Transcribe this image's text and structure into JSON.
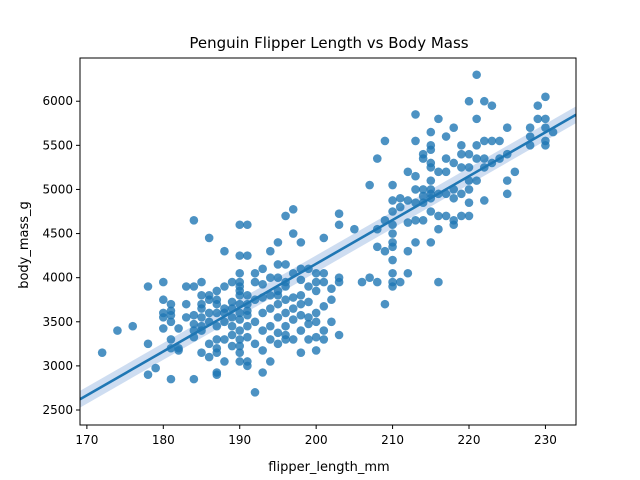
{
  "chart_data": {
    "type": "scatter",
    "title": "Penguin Flipper Length vs Body Mass",
    "xlabel": "flipper_length_mm",
    "ylabel": "body_mass_g",
    "xlim": [
      169.1,
      234.0
    ],
    "ylim": [
      2330,
      6490
    ],
    "xticks": [
      170,
      180,
      190,
      200,
      210,
      220,
      230
    ],
    "yticks": [
      2500,
      3000,
      3500,
      4000,
      4500,
      5000,
      5500,
      6000
    ],
    "grid": false,
    "legend": "none",
    "point_color": "#1f77b4",
    "regression": {
      "type": "linear",
      "intercept": -5780.8,
      "slope": 49.69,
      "ci_half_width": 95,
      "line_color": "#1f77b4",
      "band_color": "#aec7e8"
    },
    "points": [
      [
        172,
        3150
      ],
      [
        174,
        3400
      ],
      [
        176,
        3450
      ],
      [
        178,
        3250
      ],
      [
        178,
        3900
      ],
      [
        178,
        2900
      ],
      [
        179,
        2975
      ],
      [
        180,
        3600
      ],
      [
        180,
        3950
      ],
      [
        180,
        3750
      ],
      [
        180,
        3550
      ],
      [
        180,
        3425
      ],
      [
        181,
        3200
      ],
      [
        181,
        3300
      ],
      [
        181,
        3625
      ],
      [
        181,
        3500
      ],
      [
        181,
        3700
      ],
      [
        181,
        3575
      ],
      [
        181,
        2850
      ],
      [
        182,
        3425
      ],
      [
        182,
        3200
      ],
      [
        182,
        3175
      ],
      [
        183,
        3550
      ],
      [
        183,
        3900
      ],
      [
        183,
        3700
      ],
      [
        184,
        3900
      ],
      [
        184,
        3325
      ],
      [
        184,
        4650
      ],
      [
        184,
        2850
      ],
      [
        184,
        3400
      ],
      [
        184,
        3475
      ],
      [
        184,
        3575
      ],
      [
        185,
        3150
      ],
      [
        185,
        3700
      ],
      [
        185,
        3950
      ],
      [
        185,
        3550
      ],
      [
        185,
        3400
      ],
      [
        185,
        3650
      ],
      [
        185,
        3800
      ],
      [
        185,
        3450
      ],
      [
        186,
        3250
      ],
      [
        186,
        3750
      ],
      [
        186,
        3600
      ],
      [
        186,
        4450
      ],
      [
        186,
        3100
      ],
      [
        186,
        3500
      ],
      [
        186,
        3800
      ],
      [
        187,
        3150
      ],
      [
        187,
        3300
      ],
      [
        187,
        3600
      ],
      [
        187,
        3700
      ],
      [
        187,
        2900
      ],
      [
        187,
        3200
      ],
      [
        187,
        3450
      ],
      [
        187,
        3750
      ],
      [
        187,
        3850
      ],
      [
        187,
        2925
      ],
      [
        188,
        3050
      ],
      [
        188,
        3300
      ],
      [
        188,
        3500
      ],
      [
        188,
        3600
      ],
      [
        188,
        3650
      ],
      [
        188,
        4300
      ],
      [
        188,
        3900
      ],
      [
        189,
        3225
      ],
      [
        189,
        3550
      ],
      [
        189,
        3725
      ],
      [
        189,
        3950
      ],
      [
        189,
        3450
      ],
      [
        189,
        3350
      ],
      [
        189,
        3650
      ],
      [
        190,
        3050
      ],
      [
        190,
        3225
      ],
      [
        190,
        3400
      ],
      [
        190,
        3600
      ],
      [
        190,
        3700
      ],
      [
        190,
        3850
      ],
      [
        190,
        4050
      ],
      [
        190,
        4600
      ],
      [
        190,
        4250
      ],
      [
        190,
        3525
      ],
      [
        190,
        3800
      ],
      [
        190,
        3300
      ],
      [
        190,
        3950
      ],
      [
        190,
        3150
      ],
      [
        190,
        3900
      ],
      [
        191,
        3000
      ],
      [
        191,
        3325
      ],
      [
        191,
        3450
      ],
      [
        191,
        3625
      ],
      [
        191,
        3800
      ],
      [
        191,
        4250
      ],
      [
        191,
        4600
      ],
      [
        191,
        3050
      ],
      [
        191,
        3575
      ],
      [
        191,
        3700
      ],
      [
        192,
        2700
      ],
      [
        192,
        3500
      ],
      [
        192,
        3750
      ],
      [
        192,
        4050
      ],
      [
        192,
        3950
      ],
      [
        192,
        3250
      ],
      [
        193,
        2925
      ],
      [
        193,
        3175
      ],
      [
        193,
        3400
      ],
      [
        193,
        3600
      ],
      [
        193,
        3775
      ],
      [
        193,
        4100
      ],
      [
        193,
        3925
      ],
      [
        194,
        3050
      ],
      [
        194,
        3300
      ],
      [
        194,
        3450
      ],
      [
        194,
        3650
      ],
      [
        194,
        3800
      ],
      [
        194,
        4000
      ],
      [
        194,
        4300
      ],
      [
        195,
        3250
      ],
      [
        195,
        3375
      ],
      [
        195,
        3550
      ],
      [
        195,
        3850
      ],
      [
        195,
        4000
      ],
      [
        195,
        4150
      ],
      [
        195,
        4400
      ],
      [
        195,
        3800
      ],
      [
        195,
        3700
      ],
      [
        196,
        3300
      ],
      [
        196,
        3450
      ],
      [
        196,
        3600
      ],
      [
        196,
        3750
      ],
      [
        196,
        3950
      ],
      [
        196,
        4150
      ],
      [
        196,
        4700
      ],
      [
        196,
        3350
      ],
      [
        196,
        3900
      ],
      [
        197,
        3300
      ],
      [
        197,
        3525
      ],
      [
        197,
        3775
      ],
      [
        197,
        4050
      ],
      [
        197,
        4775
      ],
      [
        197,
        4500
      ],
      [
        197,
        3650
      ],
      [
        198,
        3150
      ],
      [
        198,
        3400
      ],
      [
        198,
        3575
      ],
      [
        198,
        3800
      ],
      [
        198,
        3975
      ],
      [
        198,
        4400
      ],
      [
        198,
        3700
      ],
      [
        198,
        4100
      ],
      [
        199,
        3300
      ],
      [
        199,
        3550
      ],
      [
        199,
        3725
      ],
      [
        199,
        3900
      ],
      [
        199,
        4100
      ],
      [
        199,
        3475
      ],
      [
        200,
        3500
      ],
      [
        200,
        3600
      ],
      [
        200,
        3850
      ],
      [
        200,
        4050
      ],
      [
        200,
        3175
      ],
      [
        200,
        3950
      ],
      [
        200,
        3325
      ],
      [
        201,
        3400
      ],
      [
        201,
        3675
      ],
      [
        201,
        3950
      ],
      [
        201,
        4050
      ],
      [
        201,
        3300
      ],
      [
        201,
        4450
      ],
      [
        202,
        3875
      ],
      [
        202,
        3750
      ],
      [
        202,
        3500
      ],
      [
        203,
        3350
      ],
      [
        203,
        3950
      ],
      [
        203,
        4000
      ],
      [
        203,
        4600
      ],
      [
        203,
        4725
      ],
      [
        205,
        4550
      ],
      [
        206,
        3950
      ],
      [
        207,
        4000
      ],
      [
        207,
        5050
      ],
      [
        208,
        4350
      ],
      [
        208,
        3950
      ],
      [
        208,
        4550
      ],
      [
        208,
        5350
      ],
      [
        209,
        3700
      ],
      [
        209,
        4300
      ],
      [
        209,
        4650
      ],
      [
        209,
        5550
      ],
      [
        210,
        3900
      ],
      [
        210,
        4200
      ],
      [
        210,
        4400
      ],
      [
        210,
        4600
      ],
      [
        210,
        4750
      ],
      [
        210,
        4875
      ],
      [
        210,
        5050
      ],
      [
        210,
        4050
      ],
      [
        210,
        3950
      ],
      [
        210,
        4500
      ],
      [
        210,
        4350
      ],
      [
        211,
        4800
      ],
      [
        211,
        3950
      ],
      [
        211,
        4900
      ],
      [
        212,
        4050
      ],
      [
        212,
        4300
      ],
      [
        212,
        4625
      ],
      [
        212,
        4875
      ],
      [
        212,
        5200
      ],
      [
        213,
        4400
      ],
      [
        213,
        4650
      ],
      [
        213,
        4850
      ],
      [
        213,
        5000
      ],
      [
        213,
        5550
      ],
      [
        213,
        5850
      ],
      [
        213,
        5150
      ],
      [
        214,
        4650
      ],
      [
        214,
        4850
      ],
      [
        214,
        5000
      ],
      [
        214,
        5350
      ],
      [
        214,
        5400
      ],
      [
        214,
        4925
      ],
      [
        215,
        4400
      ],
      [
        215,
        4750
      ],
      [
        215,
        4950
      ],
      [
        215,
        5100
      ],
      [
        215,
        5250
      ],
      [
        215,
        5450
      ],
      [
        215,
        5650
      ],
      [
        215,
        5300
      ],
      [
        215,
        4900
      ],
      [
        215,
        5000
      ],
      [
        215,
        5500
      ],
      [
        216,
        4550
      ],
      [
        216,
        4700
      ],
      [
        216,
        4950
      ],
      [
        216,
        5200
      ],
      [
        216,
        5800
      ],
      [
        216,
        3950
      ],
      [
        217,
        4700
      ],
      [
        217,
        4950
      ],
      [
        217,
        5200
      ],
      [
        217,
        5600
      ],
      [
        217,
        5350
      ],
      [
        218,
        4600
      ],
      [
        218,
        4900
      ],
      [
        218,
        5000
      ],
      [
        218,
        5300
      ],
      [
        218,
        5700
      ],
      [
        218,
        4650
      ],
      [
        219,
        4700
      ],
      [
        219,
        4950
      ],
      [
        219,
        5250
      ],
      [
        219,
        5500
      ],
      [
        219,
        5400
      ],
      [
        220,
        4700
      ],
      [
        220,
        5000
      ],
      [
        220,
        5100
      ],
      [
        220,
        5250
      ],
      [
        220,
        5400
      ],
      [
        220,
        6000
      ],
      [
        220,
        4850
      ],
      [
        221,
        5100
      ],
      [
        221,
        5350
      ],
      [
        221,
        5500
      ],
      [
        221,
        6300
      ],
      [
        221,
        5800
      ],
      [
        222,
        4875
      ],
      [
        222,
        5250
      ],
      [
        222,
        5550
      ],
      [
        222,
        6000
      ],
      [
        222,
        5350
      ],
      [
        223,
        5550
      ],
      [
        223,
        5950
      ],
      [
        223,
        5300
      ],
      [
        224,
        5350
      ],
      [
        224,
        5550
      ],
      [
        225,
        4950
      ],
      [
        225,
        5100
      ],
      [
        225,
        5400
      ],
      [
        225,
        5700
      ],
      [
        226,
        5200
      ],
      [
        228,
        5500
      ],
      [
        228,
        5600
      ],
      [
        228,
        5700
      ],
      [
        229,
        5800
      ],
      [
        229,
        5950
      ],
      [
        230,
        5500
      ],
      [
        230,
        5550
      ],
      [
        230,
        5700
      ],
      [
        230,
        5800
      ],
      [
        230,
        6050
      ],
      [
        231,
        5650
      ]
    ]
  }
}
